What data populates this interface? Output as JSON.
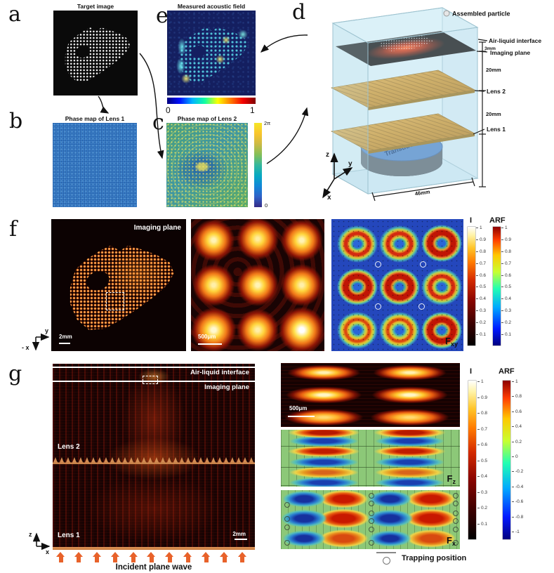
{
  "panel_letters": {
    "a": "a",
    "b": "b",
    "c": "c",
    "d": "d",
    "e": "e",
    "f": "f",
    "g": "g"
  },
  "a": {
    "title": "Target image"
  },
  "b": {
    "title": "Phase map of Lens 1"
  },
  "c": {
    "title": "Phase map of Lens 2",
    "cbar_top": "2π",
    "cbar_bottom": "0"
  },
  "d": {
    "legend": "Assembled particle",
    "air": "Air-liquid interface",
    "mm3": "3mm",
    "imaging": "Imaging plane",
    "mm20a": "20mm",
    "lens2": "Lens 2",
    "mm20b": "20mm",
    "lens1": "Lens 1",
    "transducer": "Transducer",
    "mm46": "46mm",
    "ax_z": "z",
    "ax_y": "y",
    "ax_x": "x"
  },
  "e": {
    "title": "Measured acoustic field",
    "cbar_left": "0",
    "cbar_right": "1"
  },
  "f": {
    "imaging": "Imaging plane",
    "mm2": "2mm",
    "um500": "500μm",
    "ax_y": "y",
    "ax_x": "- x",
    "force_base": "F",
    "force_sub": "xy",
    "cbar_i_label": "I",
    "cbar_arf_label": "ARF",
    "i_ticks": [
      "1",
      "0.9",
      "0.8",
      "0.7",
      "0.6",
      "0.5",
      "0.4",
      "0.3",
      "0.2",
      "0.1"
    ],
    "arf_ticks": [
      "1",
      "0.9",
      "0.8",
      "0.7",
      "0.6",
      "0.5",
      "0.4",
      "0.3",
      "0.2",
      "0.1"
    ]
  },
  "g": {
    "air": "Air-liquid interface",
    "imaging": "Imaging plane",
    "lens2": "Lens 2",
    "lens1": "Lens 1",
    "mm2": "2mm",
    "um500": "500μm",
    "incident": "Incident plane wave",
    "ax_z": "z",
    "ax_x": "x",
    "force_z_base": "F",
    "force_z_sub": "z",
    "force_x_base": "F",
    "force_x_sub": "x",
    "cbar_i_label": "I",
    "cbar_arf_label": "ARF",
    "i_ticks": [
      "1",
      "0.9",
      "0.8",
      "0.7",
      "0.6",
      "0.5",
      "0.4",
      "0.3",
      "0.2",
      "0.1"
    ],
    "arf_ticks": [
      "1",
      "0.8",
      "0.6",
      "0.4",
      "0.2",
      "0",
      "-0.2",
      "-0.4",
      "-0.6",
      "-0.8",
      "-1"
    ],
    "trapping": "Trapping position"
  }
}
